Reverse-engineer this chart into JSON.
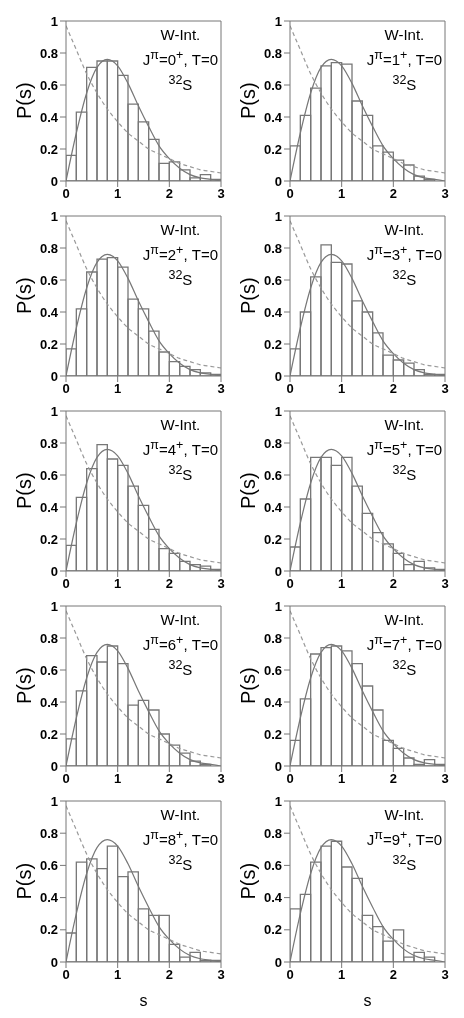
{
  "chart_data": [
    {
      "type": "histogram",
      "ylabel": "P(s)",
      "annotations": [
        "W-Int.",
        "J$^{π}$=0$^{+}$, T=0",
        "$^{32}$S"
      ],
      "bins": [
        0,
        0.2,
        0.4,
        0.6,
        0.8,
        1,
        1.2,
        1.4,
        1.6,
        1.8,
        2,
        2.2,
        2.4,
        2.6,
        2.8,
        3
      ],
      "values": [
        0.16,
        0.43,
        0.71,
        0.75,
        0.75,
        0.66,
        0.48,
        0.37,
        0.26,
        0.11,
        0.12,
        0.07,
        0.02,
        0.04,
        0.01
      ],
      "color": "#777777",
      "xlim": [
        0,
        3
      ],
      "xticks": [
        0,
        1,
        2,
        3
      ],
      "ylim": [
        0,
        1
      ],
      "yticks": [
        0,
        0.2,
        0.4,
        0.6,
        0.8,
        1
      ],
      "series": [
        {
          "type": "line",
          "line_style": "solid",
          "color": "#777777",
          "x": [
            0,
            0.2,
            0.4,
            0.6,
            0.8,
            1,
            1.2,
            1.4,
            1.6,
            1.8,
            2,
            2.2,
            2.4,
            2.6,
            2.8,
            3
          ],
          "values": [
            0,
            0.3,
            0.55,
            0.71,
            0.76,
            0.72,
            0.61,
            0.47,
            0.34,
            0.22,
            0.14,
            0.08,
            0.04,
            0.02,
            0.01,
            0
          ]
        },
        {
          "type": "line",
          "line_style": "dashed",
          "color": "#999999",
          "x": [
            0,
            0.2,
            0.4,
            0.6,
            0.8,
            1,
            1.2,
            1.4,
            1.6,
            1.8,
            2,
            2.2,
            2.4,
            2.6,
            2.8,
            3
          ],
          "values": [
            0.97,
            0.82,
            0.67,
            0.55,
            0.45,
            0.37,
            0.3,
            0.25,
            0.2,
            0.17,
            0.14,
            0.11,
            0.09,
            0.07,
            0.06,
            0.05
          ]
        }
      ]
    },
    {
      "type": "histogram",
      "ylabel": "P(s)",
      "annotations": [
        "W-Int.",
        "J$^{π}$=1$^{+}$, T=0",
        "$^{32}$S"
      ],
      "bins": [
        0,
        0.2,
        0.4,
        0.6,
        0.8,
        1,
        1.2,
        1.4,
        1.6,
        1.8,
        2,
        2.2,
        2.4,
        2.6,
        2.8,
        3
      ],
      "values": [
        0.22,
        0.41,
        0.58,
        0.72,
        0.74,
        0.73,
        0.5,
        0.41,
        0.22,
        0.18,
        0.13,
        0.1,
        0.03,
        0.01,
        0
      ],
      "color": "#777777",
      "xlim": [
        0,
        3
      ],
      "xticks": [
        0,
        1,
        2,
        3
      ],
      "ylim": [
        0,
        1
      ],
      "yticks": [
        0,
        0.2,
        0.4,
        0.6,
        0.8,
        1
      ],
      "series": [
        {
          "type": "line",
          "line_style": "solid",
          "color": "#777777",
          "x": [
            0,
            0.2,
            0.4,
            0.6,
            0.8,
            1,
            1.2,
            1.4,
            1.6,
            1.8,
            2,
            2.2,
            2.4,
            2.6,
            2.8,
            3
          ],
          "values": [
            0,
            0.3,
            0.55,
            0.71,
            0.76,
            0.72,
            0.61,
            0.47,
            0.34,
            0.22,
            0.14,
            0.08,
            0.04,
            0.02,
            0.01,
            0
          ]
        },
        {
          "type": "line",
          "line_style": "dashed",
          "color": "#999999",
          "x": [
            0,
            0.2,
            0.4,
            0.6,
            0.8,
            1,
            1.2,
            1.4,
            1.6,
            1.8,
            2,
            2.2,
            2.4,
            2.6,
            2.8,
            3
          ],
          "values": [
            0.97,
            0.82,
            0.67,
            0.55,
            0.45,
            0.37,
            0.3,
            0.25,
            0.2,
            0.17,
            0.14,
            0.11,
            0.09,
            0.07,
            0.06,
            0.05
          ]
        }
      ]
    },
    {
      "type": "histogram",
      "ylabel": "P(s)",
      "annotations": [
        "W-Int.",
        "J$^{π}$=2$^{+}$, T=0",
        "$^{32}$S"
      ],
      "bins": [
        0,
        0.2,
        0.4,
        0.6,
        0.8,
        1,
        1.2,
        1.4,
        1.6,
        1.8,
        2,
        2.2,
        2.4,
        2.6,
        2.8,
        3
      ],
      "values": [
        0.17,
        0.42,
        0.65,
        0.73,
        0.74,
        0.68,
        0.48,
        0.42,
        0.28,
        0.15,
        0.09,
        0.06,
        0.04,
        0.02,
        0.01
      ],
      "color": "#777777",
      "xlim": [
        0,
        3
      ],
      "xticks": [
        0,
        1,
        2,
        3
      ],
      "ylim": [
        0,
        1
      ],
      "yticks": [
        0,
        0.2,
        0.4,
        0.6,
        0.8,
        1
      ],
      "series": [
        {
          "type": "line",
          "line_style": "solid",
          "color": "#777777",
          "x": [
            0,
            0.2,
            0.4,
            0.6,
            0.8,
            1,
            1.2,
            1.4,
            1.6,
            1.8,
            2,
            2.2,
            2.4,
            2.6,
            2.8,
            3
          ],
          "values": [
            0,
            0.3,
            0.55,
            0.71,
            0.76,
            0.72,
            0.61,
            0.47,
            0.34,
            0.22,
            0.14,
            0.08,
            0.04,
            0.02,
            0.01,
            0
          ]
        },
        {
          "type": "line",
          "line_style": "dashed",
          "color": "#999999",
          "x": [
            0,
            0.2,
            0.4,
            0.6,
            0.8,
            1,
            1.2,
            1.4,
            1.6,
            1.8,
            2,
            2.2,
            2.4,
            2.6,
            2.8,
            3
          ],
          "values": [
            0.97,
            0.82,
            0.67,
            0.55,
            0.45,
            0.37,
            0.3,
            0.25,
            0.2,
            0.17,
            0.14,
            0.11,
            0.09,
            0.07,
            0.06,
            0.05
          ]
        }
      ]
    },
    {
      "type": "histogram",
      "ylabel": "P(s)",
      "annotations": [
        "W-Int.",
        "J$^{π}$=3$^{+}$, T=0",
        "$^{32}$S"
      ],
      "bins": [
        0,
        0.2,
        0.4,
        0.6,
        0.8,
        1,
        1.2,
        1.4,
        1.6,
        1.8,
        2,
        2.2,
        2.4,
        2.6,
        2.8,
        3
      ],
      "values": [
        0.17,
        0.4,
        0.62,
        0.82,
        0.71,
        0.7,
        0.47,
        0.4,
        0.27,
        0.13,
        0.1,
        0.08,
        0.04,
        0.01,
        0.01
      ],
      "color": "#777777",
      "xlim": [
        0,
        3
      ],
      "xticks": [
        0,
        1,
        2,
        3
      ],
      "ylim": [
        0,
        1
      ],
      "yticks": [
        0,
        0.2,
        0.4,
        0.6,
        0.8,
        1
      ],
      "series": [
        {
          "type": "line",
          "line_style": "solid",
          "color": "#777777",
          "x": [
            0,
            0.2,
            0.4,
            0.6,
            0.8,
            1,
            1.2,
            1.4,
            1.6,
            1.8,
            2,
            2.2,
            2.4,
            2.6,
            2.8,
            3
          ],
          "values": [
            0,
            0.3,
            0.55,
            0.71,
            0.76,
            0.72,
            0.61,
            0.47,
            0.34,
            0.22,
            0.14,
            0.08,
            0.04,
            0.02,
            0.01,
            0
          ]
        },
        {
          "type": "line",
          "line_style": "dashed",
          "color": "#999999",
          "x": [
            0,
            0.2,
            0.4,
            0.6,
            0.8,
            1,
            1.2,
            1.4,
            1.6,
            1.8,
            2,
            2.2,
            2.4,
            2.6,
            2.8,
            3
          ],
          "values": [
            0.97,
            0.82,
            0.67,
            0.55,
            0.45,
            0.37,
            0.3,
            0.25,
            0.2,
            0.17,
            0.14,
            0.11,
            0.09,
            0.07,
            0.06,
            0.05
          ]
        }
      ]
    },
    {
      "type": "histogram",
      "ylabel": "P(s)",
      "annotations": [
        "W-Int.",
        "J$^{π}$=4$^{+}$, T=0",
        "$^{32}$S"
      ],
      "bins": [
        0,
        0.2,
        0.4,
        0.6,
        0.8,
        1,
        1.2,
        1.4,
        1.6,
        1.8,
        2,
        2.2,
        2.4,
        2.6,
        2.8,
        3
      ],
      "values": [
        0.16,
        0.46,
        0.64,
        0.79,
        0.7,
        0.66,
        0.53,
        0.41,
        0.26,
        0.14,
        0.11,
        0.06,
        0.04,
        0.03,
        0.01
      ],
      "color": "#777777",
      "xlim": [
        0,
        3
      ],
      "xticks": [
        0,
        1,
        2,
        3
      ],
      "ylim": [
        0,
        1
      ],
      "yticks": [
        0,
        0.2,
        0.4,
        0.6,
        0.8,
        1
      ],
      "series": [
        {
          "type": "line",
          "line_style": "solid",
          "color": "#777777",
          "x": [
            0,
            0.2,
            0.4,
            0.6,
            0.8,
            1,
            1.2,
            1.4,
            1.6,
            1.8,
            2,
            2.2,
            2.4,
            2.6,
            2.8,
            3
          ],
          "values": [
            0,
            0.3,
            0.55,
            0.71,
            0.76,
            0.72,
            0.61,
            0.47,
            0.34,
            0.22,
            0.14,
            0.08,
            0.04,
            0.02,
            0.01,
            0
          ]
        },
        {
          "type": "line",
          "line_style": "dashed",
          "color": "#999999",
          "x": [
            0,
            0.2,
            0.4,
            0.6,
            0.8,
            1,
            1.2,
            1.4,
            1.6,
            1.8,
            2,
            2.2,
            2.4,
            2.6,
            2.8,
            3
          ],
          "values": [
            0.97,
            0.82,
            0.67,
            0.55,
            0.45,
            0.37,
            0.3,
            0.25,
            0.2,
            0.17,
            0.14,
            0.11,
            0.09,
            0.07,
            0.06,
            0.05
          ]
        }
      ]
    },
    {
      "type": "histogram",
      "ylabel": "P(s)",
      "annotations": [
        "W-Int.",
        "J$^{π}$=5$^{+}$, T=0",
        "$^{32}$S"
      ],
      "bins": [
        0,
        0.2,
        0.4,
        0.6,
        0.8,
        1,
        1.2,
        1.4,
        1.6,
        1.8,
        2,
        2.2,
        2.4,
        2.6,
        2.8,
        3
      ],
      "values": [
        0.15,
        0.45,
        0.71,
        0.71,
        0.66,
        0.71,
        0.53,
        0.36,
        0.24,
        0.17,
        0.11,
        0.04,
        0.06,
        0.02,
        0.01
      ],
      "color": "#777777",
      "xlim": [
        0,
        3
      ],
      "xticks": [
        0,
        1,
        2,
        3
      ],
      "ylim": [
        0,
        1
      ],
      "yticks": [
        0,
        0.2,
        0.4,
        0.6,
        0.8,
        1
      ],
      "series": [
        {
          "type": "line",
          "line_style": "solid",
          "color": "#777777",
          "x": [
            0,
            0.2,
            0.4,
            0.6,
            0.8,
            1,
            1.2,
            1.4,
            1.6,
            1.8,
            2,
            2.2,
            2.4,
            2.6,
            2.8,
            3
          ],
          "values": [
            0,
            0.3,
            0.55,
            0.71,
            0.76,
            0.72,
            0.61,
            0.47,
            0.34,
            0.22,
            0.14,
            0.08,
            0.04,
            0.02,
            0.01,
            0
          ]
        },
        {
          "type": "line",
          "line_style": "dashed",
          "color": "#999999",
          "x": [
            0,
            0.2,
            0.4,
            0.6,
            0.8,
            1,
            1.2,
            1.4,
            1.6,
            1.8,
            2,
            2.2,
            2.4,
            2.6,
            2.8,
            3
          ],
          "values": [
            0.97,
            0.82,
            0.67,
            0.55,
            0.45,
            0.37,
            0.3,
            0.25,
            0.2,
            0.17,
            0.14,
            0.11,
            0.09,
            0.07,
            0.06,
            0.05
          ]
        }
      ]
    },
    {
      "type": "histogram",
      "ylabel": "P(s)",
      "annotations": [
        "W-Int.",
        "J$^{π}$=6$^{+}$, T=0",
        "$^{32}$S"
      ],
      "bins": [
        0,
        0.2,
        0.4,
        0.6,
        0.8,
        1,
        1.2,
        1.4,
        1.6,
        1.8,
        2,
        2.2,
        2.4,
        2.6,
        2.8,
        3
      ],
      "values": [
        0.17,
        0.47,
        0.69,
        0.65,
        0.75,
        0.64,
        0.38,
        0.41,
        0.35,
        0.2,
        0.13,
        0.08,
        0.03,
        0.01,
        0
      ],
      "color": "#777777",
      "xlim": [
        0,
        3
      ],
      "xticks": [
        0,
        1,
        2,
        3
      ],
      "ylim": [
        0,
        1
      ],
      "yticks": [
        0,
        0.2,
        0.4,
        0.6,
        0.8,
        1
      ],
      "series": [
        {
          "type": "line",
          "line_style": "solid",
          "color": "#777777",
          "x": [
            0,
            0.2,
            0.4,
            0.6,
            0.8,
            1,
            1.2,
            1.4,
            1.6,
            1.8,
            2,
            2.2,
            2.4,
            2.6,
            2.8,
            3
          ],
          "values": [
            0,
            0.3,
            0.55,
            0.71,
            0.76,
            0.72,
            0.61,
            0.47,
            0.34,
            0.22,
            0.14,
            0.08,
            0.04,
            0.02,
            0.01,
            0
          ]
        },
        {
          "type": "line",
          "line_style": "dashed",
          "color": "#999999",
          "x": [
            0,
            0.2,
            0.4,
            0.6,
            0.8,
            1,
            1.2,
            1.4,
            1.6,
            1.8,
            2,
            2.2,
            2.4,
            2.6,
            2.8,
            3
          ],
          "values": [
            0.97,
            0.82,
            0.67,
            0.55,
            0.45,
            0.37,
            0.3,
            0.25,
            0.2,
            0.17,
            0.14,
            0.11,
            0.09,
            0.07,
            0.06,
            0.05
          ]
        }
      ]
    },
    {
      "type": "histogram",
      "ylabel": "P(s)",
      "annotations": [
        "W-Int.",
        "J$^{π}$=7$^{+}$, T=0",
        "$^{32}$S"
      ],
      "bins": [
        0,
        0.2,
        0.4,
        0.6,
        0.8,
        1,
        1.2,
        1.4,
        1.6,
        1.8,
        2,
        2.2,
        2.4,
        2.6,
        2.8,
        3
      ],
      "values": [
        0.16,
        0.42,
        0.7,
        0.74,
        0.75,
        0.72,
        0.64,
        0.5,
        0.35,
        0.16,
        0.11,
        0.05,
        0.01,
        0.04,
        0.01
      ],
      "color": "#777777",
      "xlim": [
        0,
        3
      ],
      "xticks": [
        0,
        1,
        2,
        3
      ],
      "ylim": [
        0,
        1
      ],
      "yticks": [
        0,
        0.2,
        0.4,
        0.6,
        0.8,
        1
      ],
      "series": [
        {
          "type": "line",
          "line_style": "solid",
          "color": "#777777",
          "x": [
            0,
            0.2,
            0.4,
            0.6,
            0.8,
            1,
            1.2,
            1.4,
            1.6,
            1.8,
            2,
            2.2,
            2.4,
            2.6,
            2.8,
            3
          ],
          "values": [
            0,
            0.3,
            0.55,
            0.71,
            0.76,
            0.72,
            0.61,
            0.47,
            0.34,
            0.22,
            0.14,
            0.08,
            0.04,
            0.02,
            0.01,
            0
          ]
        },
        {
          "type": "line",
          "line_style": "dashed",
          "color": "#999999",
          "x": [
            0,
            0.2,
            0.4,
            0.6,
            0.8,
            1,
            1.2,
            1.4,
            1.6,
            1.8,
            2,
            2.2,
            2.4,
            2.6,
            2.8,
            3
          ],
          "values": [
            0.97,
            0.82,
            0.67,
            0.55,
            0.45,
            0.37,
            0.3,
            0.25,
            0.2,
            0.17,
            0.14,
            0.11,
            0.09,
            0.07,
            0.06,
            0.05
          ]
        }
      ]
    },
    {
      "type": "histogram",
      "xlabel": "s",
      "ylabel": "P(s)",
      "annotations": [
        "W-Int.",
        "J$^{π}$=8$^{+}$, T=0",
        "$^{32}$S"
      ],
      "bins": [
        0,
        0.2,
        0.4,
        0.6,
        0.8,
        1,
        1.2,
        1.4,
        1.6,
        1.8,
        2,
        2.2,
        2.4,
        2.6,
        2.8,
        3
      ],
      "values": [
        0.18,
        0.62,
        0.64,
        0.58,
        0.72,
        0.53,
        0.56,
        0.33,
        0.29,
        0.29,
        0.11,
        0.03,
        0.06,
        0.01,
        0.01
      ],
      "color": "#777777",
      "xlim": [
        0,
        3
      ],
      "xticks": [
        0,
        1,
        2,
        3
      ],
      "ylim": [
        0,
        1
      ],
      "yticks": [
        0,
        0.2,
        0.4,
        0.6,
        0.8,
        1
      ],
      "series": [
        {
          "type": "line",
          "line_style": "solid",
          "color": "#777777",
          "x": [
            0,
            0.2,
            0.4,
            0.6,
            0.8,
            1,
            1.2,
            1.4,
            1.6,
            1.8,
            2,
            2.2,
            2.4,
            2.6,
            2.8,
            3
          ],
          "values": [
            0,
            0.3,
            0.55,
            0.71,
            0.76,
            0.72,
            0.61,
            0.47,
            0.34,
            0.22,
            0.14,
            0.08,
            0.04,
            0.02,
            0.01,
            0
          ]
        },
        {
          "type": "line",
          "line_style": "dashed",
          "color": "#999999",
          "x": [
            0,
            0.2,
            0.4,
            0.6,
            0.8,
            1,
            1.2,
            1.4,
            1.6,
            1.8,
            2,
            2.2,
            2.4,
            2.6,
            2.8,
            3
          ],
          "values": [
            0.97,
            0.82,
            0.67,
            0.55,
            0.45,
            0.37,
            0.3,
            0.25,
            0.2,
            0.17,
            0.14,
            0.11,
            0.09,
            0.07,
            0.06,
            0.05
          ]
        }
      ]
    },
    {
      "type": "histogram",
      "xlabel": "s",
      "ylabel": "P(s)",
      "annotations": [
        "W-Int.",
        "J$^{π}$=9$^{+}$, T=0",
        "$^{32}$S"
      ],
      "bins": [
        0,
        0.2,
        0.4,
        0.6,
        0.8,
        1,
        1.2,
        1.4,
        1.6,
        1.8,
        2,
        2.2,
        2.4,
        2.6,
        2.8,
        3
      ],
      "values": [
        0.33,
        0.42,
        0.62,
        0.72,
        0.75,
        0.59,
        0.52,
        0.29,
        0.22,
        0.13,
        0.2,
        0.03,
        0.06,
        0.03,
        0
      ],
      "color": "#777777",
      "xlim": [
        0,
        3
      ],
      "xticks": [
        0,
        1,
        2,
        3
      ],
      "ylim": [
        0,
        1
      ],
      "yticks": [
        0,
        0.2,
        0.4,
        0.6,
        0.8,
        1
      ],
      "series": [
        {
          "type": "line",
          "line_style": "solid",
          "color": "#777777",
          "x": [
            0,
            0.2,
            0.4,
            0.6,
            0.8,
            1,
            1.2,
            1.4,
            1.6,
            1.8,
            2,
            2.2,
            2.4,
            2.6,
            2.8,
            3
          ],
          "values": [
            0,
            0.3,
            0.55,
            0.71,
            0.76,
            0.72,
            0.61,
            0.47,
            0.34,
            0.22,
            0.14,
            0.08,
            0.04,
            0.02,
            0.01,
            0
          ]
        },
        {
          "type": "line",
          "line_style": "dashed",
          "color": "#999999",
          "x": [
            0,
            0.2,
            0.4,
            0.6,
            0.8,
            1,
            1.2,
            1.4,
            1.6,
            1.8,
            2,
            2.2,
            2.4,
            2.6,
            2.8,
            3
          ],
          "values": [
            0.97,
            0.82,
            0.67,
            0.55,
            0.45,
            0.37,
            0.3,
            0.25,
            0.2,
            0.17,
            0.14,
            0.11,
            0.09,
            0.07,
            0.06,
            0.05
          ]
        }
      ]
    }
  ]
}
